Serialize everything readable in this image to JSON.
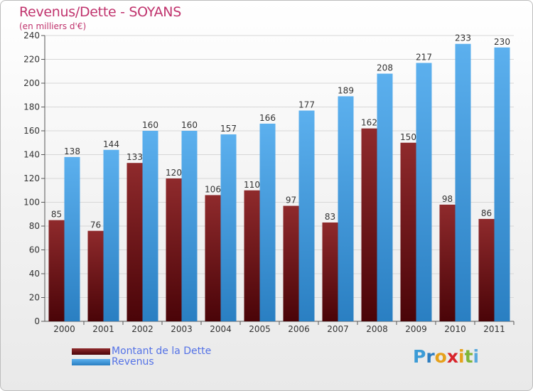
{
  "page": {
    "title": "Revenus/Dette - SOYANS",
    "subtitle": "(en milliers d'€)"
  },
  "legend": {
    "items": [
      {
        "label": "Montant de la Dette",
        "color": "#6e0f12"
      },
      {
        "label": "Revenus",
        "color": "#4fa3e6"
      }
    ]
  },
  "logo": {
    "letters": [
      "P",
      "r",
      "o",
      "x",
      "i",
      "t",
      "i"
    ],
    "colors": [
      "#3b9bd6",
      "#2f7ec0",
      "#e6a11b",
      "#d8242b",
      "#e6a11b",
      "#7fb538",
      "#5aa9dd"
    ]
  },
  "chart_data": {
    "type": "bar",
    "categories": [
      "2000",
      "2001",
      "2002",
      "2003",
      "2004",
      "2005",
      "2006",
      "2007",
      "2008",
      "2009",
      "2010",
      "2011"
    ],
    "series": [
      {
        "name": "Montant de la Dette",
        "values": [
          85,
          76,
          133,
          120,
          106,
          110,
          97,
          83,
          162,
          150,
          98,
          86
        ],
        "color": "#8a1d20"
      },
      {
        "name": "Revenus",
        "values": [
          138,
          144,
          160,
          160,
          157,
          166,
          177,
          189,
          208,
          217,
          233,
          230
        ],
        "color": "#4fa3e6"
      }
    ],
    "ylim": [
      0,
      240
    ],
    "yticks": [
      0,
      20,
      40,
      60,
      80,
      100,
      120,
      140,
      160,
      180,
      200,
      220,
      240
    ],
    "grid": true,
    "legend_position": "bottom-left",
    "xlabel": "",
    "ylabel": ""
  }
}
